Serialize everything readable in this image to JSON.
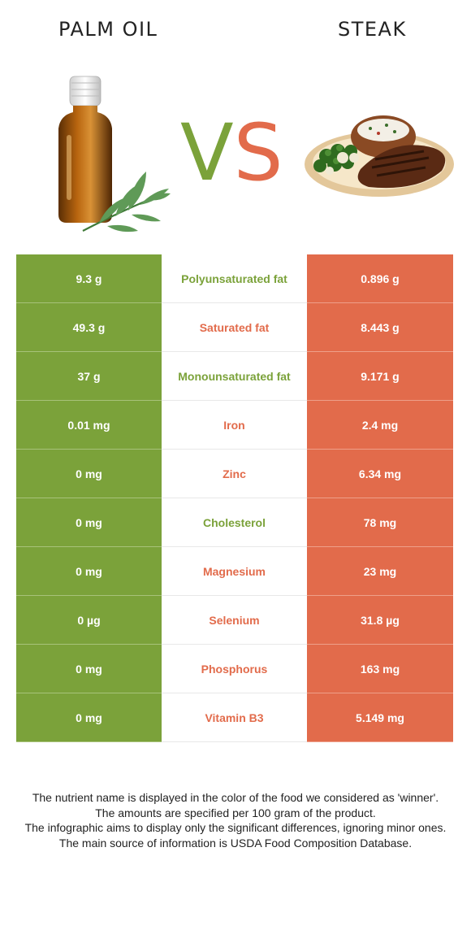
{
  "left_food": "PALM OIL",
  "right_food": "STEAK",
  "vs": {
    "v": "V",
    "s": "S"
  },
  "colors": {
    "left": "#7ba23a",
    "right": "#e26b4b"
  },
  "rows": [
    {
      "left": "9.3 g",
      "nutrient": "Polyunsaturated fat",
      "right": "0.896 g",
      "winner": "left"
    },
    {
      "left": "49.3 g",
      "nutrient": "Saturated fat",
      "right": "8.443 g",
      "winner": "right"
    },
    {
      "left": "37 g",
      "nutrient": "Monounsaturated fat",
      "right": "9.171 g",
      "winner": "left"
    },
    {
      "left": "0.01 mg",
      "nutrient": "Iron",
      "right": "2.4 mg",
      "winner": "right"
    },
    {
      "left": "0 mg",
      "nutrient": "Zinc",
      "right": "6.34 mg",
      "winner": "right"
    },
    {
      "left": "0 mg",
      "nutrient": "Cholesterol",
      "right": "78 mg",
      "winner": "left"
    },
    {
      "left": "0 mg",
      "nutrient": "Magnesium",
      "right": "23 mg",
      "winner": "right"
    },
    {
      "left": "0 µg",
      "nutrient": "Selenium",
      "right": "31.8 µg",
      "winner": "right"
    },
    {
      "left": "0 mg",
      "nutrient": "Phosphorus",
      "right": "163 mg",
      "winner": "right"
    },
    {
      "left": "0 mg",
      "nutrient": "Vitamin B3",
      "right": "5.149 mg",
      "winner": "right"
    }
  ],
  "footer": {
    "line1": "The nutrient name is displayed in the color of the food we considered as 'winner'.",
    "line2": "The amounts are specified per 100 gram of the product.",
    "line3": "The infographic aims to display only the significant differences, ignoring minor ones.",
    "line4": "The main source of information is USDA Food Composition Database."
  }
}
